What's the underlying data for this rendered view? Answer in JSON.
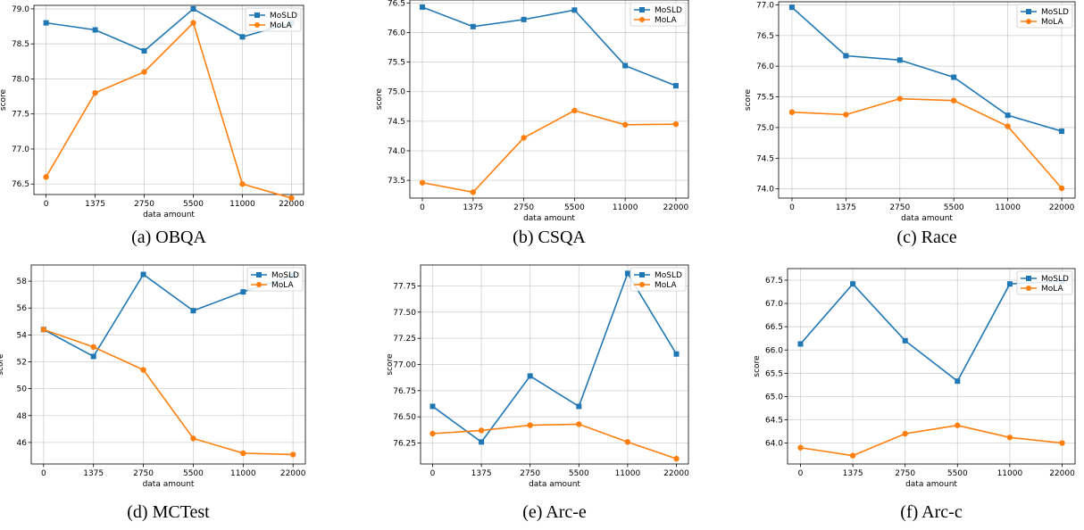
{
  "chart_data": [
    {
      "type": "line",
      "caption": "(a) OBQA",
      "categories": [
        "0",
        "1375",
        "2750",
        "5500",
        "11000",
        "22000"
      ],
      "xlabel": "data amount",
      "ylabel": "score",
      "ylim": [
        76.35,
        79.05
      ],
      "yticks": [
        "76.5",
        "77.0",
        "77.5",
        "78.0",
        "78.5",
        "79.0"
      ],
      "grid": true,
      "legend": "top-right",
      "series": [
        {
          "name": "MoSLD",
          "color": "#1f77b4",
          "marker": "square",
          "values": [
            78.8,
            78.7,
            78.4,
            79.0,
            78.6,
            78.8
          ]
        },
        {
          "name": "MoLA",
          "color": "#ff7f0e",
          "marker": "circle",
          "values": [
            76.6,
            77.8,
            78.1,
            78.8,
            76.5,
            76.3
          ]
        }
      ]
    },
    {
      "type": "line",
      "caption": "(b) CSQA",
      "categories": [
        "0",
        "1375",
        "2750",
        "5500",
        "11000",
        "22000"
      ],
      "xlabel": "data amount",
      "ylabel": "score",
      "ylim": [
        73.2,
        76.55
      ],
      "yticks": [
        "73.5",
        "74.0",
        "74.5",
        "75.0",
        "75.5",
        "76.0",
        "76.5"
      ],
      "grid": true,
      "legend": "top-right",
      "series": [
        {
          "name": "MoSLD",
          "color": "#1f77b4",
          "marker": "square",
          "values": [
            76.43,
            76.1,
            76.22,
            76.38,
            75.44,
            75.1
          ]
        },
        {
          "name": "MoLA",
          "color": "#ff7f0e",
          "marker": "circle",
          "values": [
            73.46,
            73.3,
            74.22,
            74.68,
            74.44,
            74.45
          ]
        }
      ]
    },
    {
      "type": "line",
      "caption": "(c) Race",
      "categories": [
        "0",
        "1375",
        "2750",
        "5500",
        "11000",
        "22000"
      ],
      "xlabel": "data amount",
      "ylabel": "score",
      "ylim": [
        73.85,
        77.05
      ],
      "yticks": [
        "74.0",
        "74.5",
        "75.0",
        "75.5",
        "76.0",
        "76.5",
        "77.0"
      ],
      "grid": true,
      "legend": "top-right",
      "series": [
        {
          "name": "MoSLD",
          "color": "#1f77b4",
          "marker": "square",
          "values": [
            76.96,
            76.17,
            76.1,
            75.82,
            75.2,
            74.94
          ]
        },
        {
          "name": "MoLA",
          "color": "#ff7f0e",
          "marker": "circle",
          "values": [
            75.25,
            75.21,
            75.47,
            75.44,
            75.02,
            74.01
          ]
        }
      ]
    },
    {
      "type": "line",
      "caption": "(d) MCTest",
      "categories": [
        "0",
        "1375",
        "2750",
        "5500",
        "11000",
        "22000"
      ],
      "xlabel": "data amount",
      "ylabel": "score",
      "ylim": [
        44.4,
        59.2
      ],
      "yticks": [
        "46",
        "48",
        "50",
        "52",
        "54",
        "56",
        "58"
      ],
      "grid": true,
      "legend": "top-right",
      "series": [
        {
          "name": "MoSLD",
          "color": "#1f77b4",
          "marker": "square",
          "values": [
            54.4,
            52.4,
            58.5,
            55.8,
            57.2,
            58.4
          ]
        },
        {
          "name": "MoLA",
          "color": "#ff7f0e",
          "marker": "circle",
          "values": [
            54.4,
            53.1,
            51.4,
            46.3,
            45.2,
            45.1
          ]
        }
      ]
    },
    {
      "type": "line",
      "caption": "(e) Arc-e",
      "categories": [
        "0",
        "1375",
        "2750",
        "5500",
        "11000",
        "22000"
      ],
      "xlabel": "data amount",
      "ylabel": "score",
      "ylim": [
        76.05,
        77.95
      ],
      "yticks": [
        "76.25",
        "76.50",
        "76.75",
        "77.00",
        "77.25",
        "77.50",
        "77.75"
      ],
      "grid": true,
      "legend": "top-right",
      "series": [
        {
          "name": "MoSLD",
          "color": "#1f77b4",
          "marker": "square",
          "values": [
            76.6,
            76.26,
            76.89,
            76.6,
            77.87,
            77.1
          ]
        },
        {
          "name": "MoLA",
          "color": "#ff7f0e",
          "marker": "circle",
          "values": [
            76.34,
            76.37,
            76.42,
            76.43,
            76.26,
            76.1
          ]
        }
      ]
    },
    {
      "type": "line",
      "caption": "(f) Arc-c",
      "categories": [
        "0",
        "1375",
        "2750",
        "5500",
        "11000",
        "22000"
      ],
      "xlabel": "data amount",
      "ylabel": "score",
      "ylim": [
        63.55,
        67.75
      ],
      "yticks": [
        "64.0",
        "64.5",
        "65.0",
        "65.5",
        "66.0",
        "66.5",
        "67.0",
        "67.5"
      ],
      "grid": true,
      "legend": "top-right",
      "series": [
        {
          "name": "MoSLD",
          "color": "#1f77b4",
          "marker": "square",
          "values": [
            66.13,
            67.42,
            66.2,
            65.33,
            67.42,
            67.48
          ]
        },
        {
          "name": "MoLA",
          "color": "#ff7f0e",
          "marker": "circle",
          "values": [
            63.9,
            63.73,
            64.2,
            64.38,
            64.12,
            64.0
          ]
        }
      ]
    }
  ]
}
